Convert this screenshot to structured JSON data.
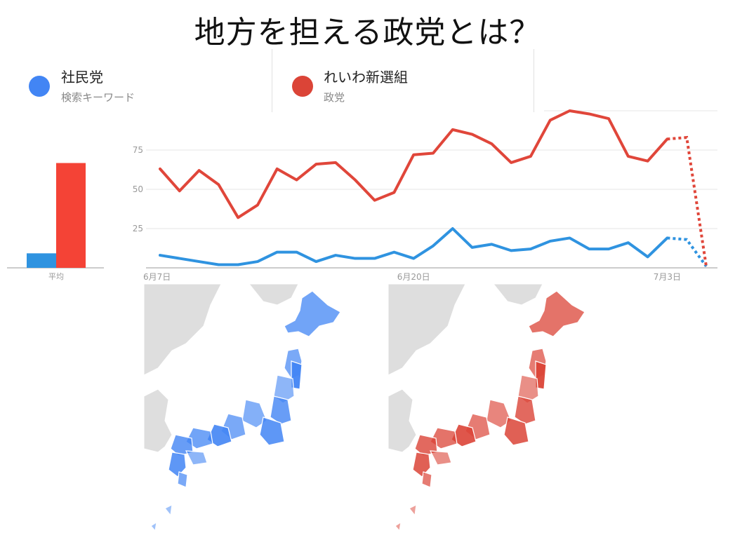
{
  "title": "地方を担える政党とは？",
  "legend": [
    {
      "name": "社民党",
      "sub": "検索キーワード",
      "color": "#4285f4"
    },
    {
      "name": "れいわ新選組",
      "sub": "政党",
      "color": "#db4437"
    }
  ],
  "average_label": "平均",
  "colors": {
    "blue": "#2f93e0",
    "red": "#e0463a",
    "grid": "#e6e6e6",
    "land": "#dedede"
  },
  "chart_data": [
    {
      "type": "bar",
      "categories": [
        "平均"
      ],
      "series": [
        {
          "name": "社民党",
          "values": [
            9
          ]
        },
        {
          "name": "れいわ新選組",
          "values": [
            65
          ]
        }
      ],
      "ylim": [
        0,
        100
      ]
    },
    {
      "type": "line",
      "x": [
        "6/7",
        "6/8",
        "6/9",
        "6/10",
        "6/11",
        "6/12",
        "6/13",
        "6/14",
        "6/15",
        "6/16",
        "6/17",
        "6/18",
        "6/19",
        "6/20",
        "6/21",
        "6/22",
        "6/23",
        "6/24",
        "6/25",
        "6/26",
        "6/27",
        "6/28",
        "6/29",
        "6/30",
        "7/1",
        "7/2",
        "7/3",
        "7/4",
        "7/5"
      ],
      "x_tick_labels": [
        "6月7日",
        "6月20日",
        "7月3日"
      ],
      "x_tick_positions": [
        "6/7",
        "6/20",
        "7/3"
      ],
      "y_ticks": [
        25,
        50,
        75
      ],
      "ylim": [
        0,
        100
      ],
      "grid": true,
      "dotted_from": "7/4",
      "series": [
        {
          "name": "社民党",
          "values": [
            8,
            6,
            4,
            2,
            2,
            4,
            10,
            10,
            4,
            8,
            6,
            6,
            10,
            6,
            14,
            25,
            13,
            15,
            11,
            12,
            17,
            19,
            12,
            12,
            16,
            7,
            19,
            18,
            1
          ]
        },
        {
          "name": "れいわ新選組",
          "values": [
            63,
            49,
            62,
            53,
            32,
            40,
            63,
            56,
            66,
            67,
            56,
            43,
            48,
            72,
            73,
            88,
            85,
            79,
            67,
            71,
            94,
            100,
            98,
            95,
            71,
            68,
            82,
            83,
            1
          ]
        }
      ]
    }
  ],
  "map_data": [
    {
      "series": "社民党",
      "color": "#4285f4"
    },
    {
      "series": "れいわ新選組",
      "color": "#db4437"
    }
  ]
}
